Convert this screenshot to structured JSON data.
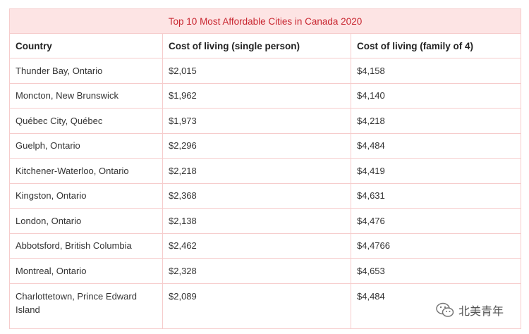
{
  "table": {
    "title": "Top 10 Most Affordable Cities in Canada 2020",
    "header": [
      "Country",
      "Cost of living (single person)",
      "Cost of living (family of 4)"
    ],
    "rows": [
      [
        "Thunder Bay, Ontario",
        "$2,015",
        "$4,158"
      ],
      [
        "Moncton, New Brunswick",
        "$1,962",
        "$4,140"
      ],
      [
        "Québec City, Québec",
        "$1,973",
        "$4,218"
      ],
      [
        "Guelph, Ontario",
        "$2,296",
        "$4,484"
      ],
      [
        "Kitchener-Waterloo, Ontario",
        "$2,218",
        "$4,419"
      ],
      [
        "Kingston, Ontario",
        "$2,368",
        "$4,631"
      ],
      [
        "London, Ontario",
        "$2,138",
        "$4,476"
      ],
      [
        "Abbotsford, British Columbia",
        "$2,462",
        "$4,4766"
      ],
      [
        "Montreal, Ontario",
        "$2,328",
        "$4,653"
      ],
      [
        "Charlottetown, Prince Edward Island",
        "$2,089",
        "$4,484"
      ]
    ]
  },
  "watermark": "北美青年"
}
